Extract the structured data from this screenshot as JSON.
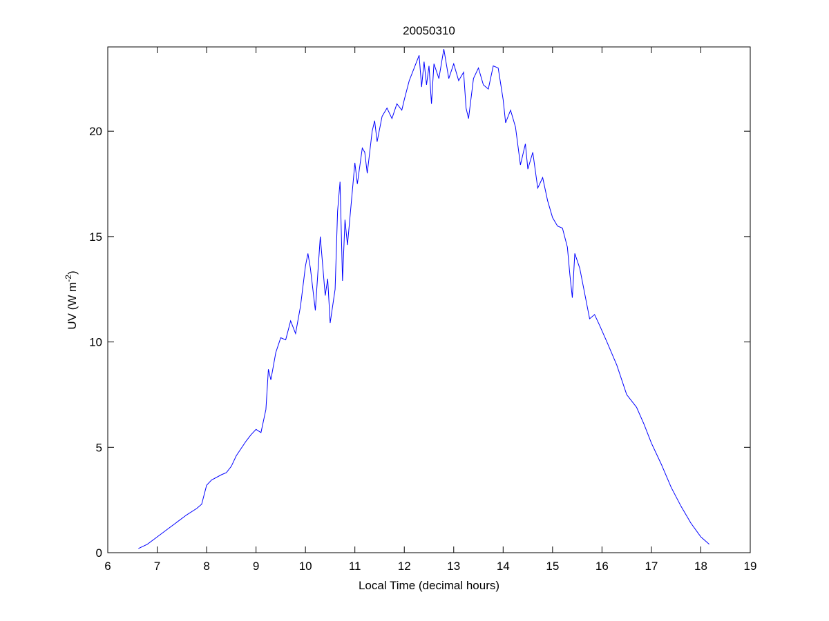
{
  "chart_data": {
    "type": "line",
    "title": "20050310",
    "xlabel": "Local Time (decimal hours)",
    "ylabel": [
      "UV (W m",
      "-2",
      ")"
    ],
    "xlim": [
      6,
      19
    ],
    "xticks": [
      6,
      7,
      8,
      9,
      10,
      11,
      12,
      13,
      14,
      15,
      16,
      17,
      18,
      19
    ],
    "ylim": [
      0,
      24
    ],
    "yticks": [
      0,
      5,
      10,
      15,
      20
    ],
    "grid": false,
    "series": [
      {
        "color": "#0000ff",
        "x": [
          6.62,
          6.8,
          7.0,
          7.2,
          7.4,
          7.6,
          7.8,
          7.9,
          8.0,
          8.1,
          8.3,
          8.4,
          8.5,
          8.6,
          8.8,
          8.9,
          9.0,
          9.1,
          9.2,
          9.25,
          9.3,
          9.4,
          9.5,
          9.6,
          9.7,
          9.8,
          9.9,
          10.0,
          10.05,
          10.1,
          10.2,
          10.3,
          10.4,
          10.45,
          10.5,
          10.6,
          10.65,
          10.7,
          10.75,
          10.8,
          10.85,
          10.95,
          11.0,
          11.05,
          11.15,
          11.2,
          11.25,
          11.35,
          11.4,
          11.45,
          11.55,
          11.65,
          11.75,
          11.85,
          11.95,
          12.0,
          12.1,
          12.2,
          12.3,
          12.35,
          12.4,
          12.45,
          12.5,
          12.55,
          12.6,
          12.7,
          12.8,
          12.9,
          13.0,
          13.1,
          13.2,
          13.25,
          13.3,
          13.4,
          13.5,
          13.6,
          13.7,
          13.8,
          13.9,
          14.0,
          14.05,
          14.15,
          14.25,
          14.35,
          14.45,
          14.5,
          14.6,
          14.7,
          14.8,
          14.9,
          15.0,
          15.1,
          15.2,
          15.3,
          15.35,
          15.4,
          15.45,
          15.55,
          15.65,
          15.75,
          15.85,
          15.95,
          16.1,
          16.3,
          16.5,
          16.7,
          16.85,
          17.0,
          17.2,
          17.4,
          17.6,
          17.8,
          18.0,
          18.17
        ],
        "values": [
          0.2,
          0.4,
          0.75,
          1.1,
          1.45,
          1.8,
          2.1,
          2.3,
          3.2,
          3.45,
          3.7,
          3.8,
          4.1,
          4.6,
          5.3,
          5.6,
          5.85,
          5.7,
          6.8,
          8.7,
          8.2,
          9.5,
          10.2,
          10.1,
          11.0,
          10.4,
          11.7,
          13.6,
          14.2,
          13.5,
          11.5,
          15.0,
          12.2,
          13.0,
          10.9,
          12.5,
          16.2,
          17.6,
          12.9,
          15.8,
          14.6,
          17.2,
          18.5,
          17.5,
          19.2,
          19.0,
          18.0,
          20.0,
          20.5,
          19.5,
          20.7,
          21.1,
          20.6,
          21.3,
          21.0,
          21.5,
          22.4,
          23.0,
          23.6,
          22.1,
          23.3,
          22.2,
          23.1,
          21.3,
          23.2,
          22.5,
          23.9,
          22.5,
          23.2,
          22.4,
          22.8,
          21.1,
          20.6,
          22.5,
          23.0,
          22.2,
          22.0,
          23.1,
          23.0,
          21.5,
          20.4,
          21.0,
          20.2,
          18.4,
          19.4,
          18.2,
          19.0,
          17.3,
          17.8,
          16.7,
          15.9,
          15.5,
          15.4,
          14.5,
          13.2,
          12.1,
          14.2,
          13.5,
          12.3,
          11.1,
          11.3,
          10.8,
          10.0,
          8.9,
          7.5,
          6.9,
          6.1,
          5.2,
          4.2,
          3.1,
          2.2,
          1.4,
          0.75,
          0.4
        ]
      }
    ]
  }
}
